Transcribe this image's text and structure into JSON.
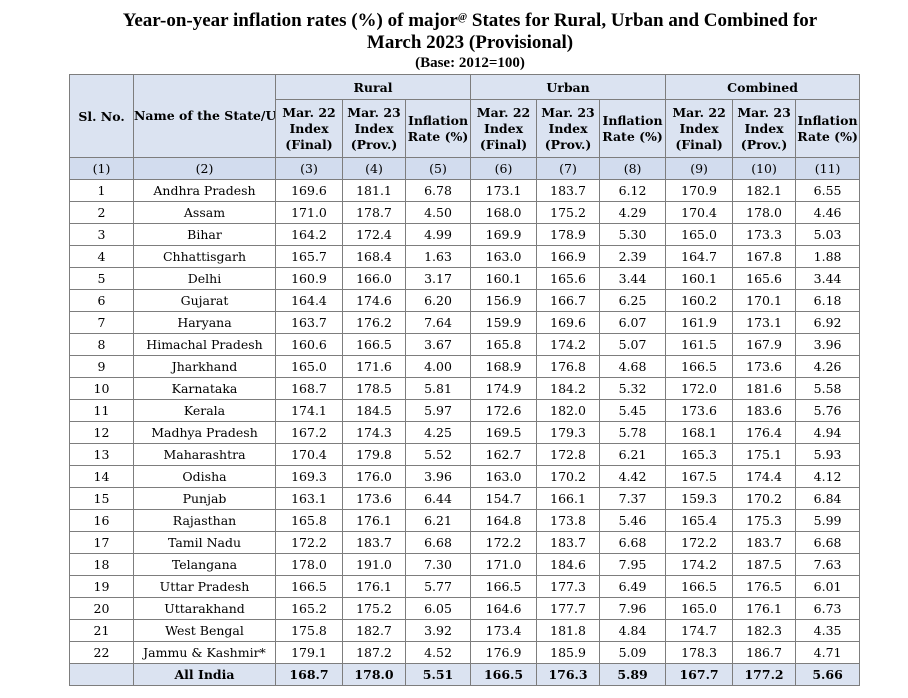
{
  "title": {
    "line1_before": "Year-on-year inflation rates (%) of major",
    "line1_mark": "@",
    "line1_after": " States for Rural, Urban and Combined for",
    "line2": "March 2023 (Provisional)",
    "base": "(Base: 2012=100)"
  },
  "headers": {
    "sl_no": "Sl. No.",
    "name": "Name of the State/UT",
    "groups": [
      "Rural",
      "Urban",
      "Combined"
    ],
    "sub_columns": [
      "Mar. 22 Index (Final)",
      "Mar. 23 Index (Prov.)",
      "Inflation Rate (%)"
    ],
    "column_numbers": [
      "(1)",
      "(2)",
      "(3)",
      "(4)",
      "(5)",
      "(6)",
      "(7)",
      "(8)",
      "(9)",
      "(10)",
      "(11)"
    ]
  },
  "rows": [
    {
      "sl": "1",
      "state": "Andhra Pradesh",
      "v": [
        "169.6",
        "181.1",
        "6.78",
        "173.1",
        "183.7",
        "6.12",
        "170.9",
        "182.1",
        "6.55"
      ]
    },
    {
      "sl": "2",
      "state": "Assam",
      "v": [
        "171.0",
        "178.7",
        "4.50",
        "168.0",
        "175.2",
        "4.29",
        "170.4",
        "178.0",
        "4.46"
      ]
    },
    {
      "sl": "3",
      "state": "Bihar",
      "v": [
        "164.2",
        "172.4",
        "4.99",
        "169.9",
        "178.9",
        "5.30",
        "165.0",
        "173.3",
        "5.03"
      ]
    },
    {
      "sl": "4",
      "state": "Chhattisgarh",
      "v": [
        "165.7",
        "168.4",
        "1.63",
        "163.0",
        "166.9",
        "2.39",
        "164.7",
        "167.8",
        "1.88"
      ]
    },
    {
      "sl": "5",
      "state": "Delhi",
      "v": [
        "160.9",
        "166.0",
        "3.17",
        "160.1",
        "165.6",
        "3.44",
        "160.1",
        "165.6",
        "3.44"
      ]
    },
    {
      "sl": "6",
      "state": "Gujarat",
      "v": [
        "164.4",
        "174.6",
        "6.20",
        "156.9",
        "166.7",
        "6.25",
        "160.2",
        "170.1",
        "6.18"
      ]
    },
    {
      "sl": "7",
      "state": "Haryana",
      "v": [
        "163.7",
        "176.2",
        "7.64",
        "159.9",
        "169.6",
        "6.07",
        "161.9",
        "173.1",
        "6.92"
      ]
    },
    {
      "sl": "8",
      "state": "Himachal Pradesh",
      "v": [
        "160.6",
        "166.5",
        "3.67",
        "165.8",
        "174.2",
        "5.07",
        "161.5",
        "167.9",
        "3.96"
      ]
    },
    {
      "sl": "9",
      "state": "Jharkhand",
      "v": [
        "165.0",
        "171.6",
        "4.00",
        "168.9",
        "176.8",
        "4.68",
        "166.5",
        "173.6",
        "4.26"
      ]
    },
    {
      "sl": "10",
      "state": "Karnataka",
      "v": [
        "168.7",
        "178.5",
        "5.81",
        "174.9",
        "184.2",
        "5.32",
        "172.0",
        "181.6",
        "5.58"
      ]
    },
    {
      "sl": "11",
      "state": "Kerala",
      "v": [
        "174.1",
        "184.5",
        "5.97",
        "172.6",
        "182.0",
        "5.45",
        "173.6",
        "183.6",
        "5.76"
      ]
    },
    {
      "sl": "12",
      "state": "Madhya Pradesh",
      "v": [
        "167.2",
        "174.3",
        "4.25",
        "169.5",
        "179.3",
        "5.78",
        "168.1",
        "176.4",
        "4.94"
      ]
    },
    {
      "sl": "13",
      "state": "Maharashtra",
      "v": [
        "170.4",
        "179.8",
        "5.52",
        "162.7",
        "172.8",
        "6.21",
        "165.3",
        "175.1",
        "5.93"
      ]
    },
    {
      "sl": "14",
      "state": "Odisha",
      "v": [
        "169.3",
        "176.0",
        "3.96",
        "163.0",
        "170.2",
        "4.42",
        "167.5",
        "174.4",
        "4.12"
      ]
    },
    {
      "sl": "15",
      "state": "Punjab",
      "v": [
        "163.1",
        "173.6",
        "6.44",
        "154.7",
        "166.1",
        "7.37",
        "159.3",
        "170.2",
        "6.84"
      ]
    },
    {
      "sl": "16",
      "state": "Rajasthan",
      "v": [
        "165.8",
        "176.1",
        "6.21",
        "164.8",
        "173.8",
        "5.46",
        "165.4",
        "175.3",
        "5.99"
      ]
    },
    {
      "sl": "17",
      "state": "Tamil Nadu",
      "v": [
        "172.2",
        "183.7",
        "6.68",
        "172.2",
        "183.7",
        "6.68",
        "172.2",
        "183.7",
        "6.68"
      ]
    },
    {
      "sl": "18",
      "state": "Telangana",
      "v": [
        "178.0",
        "191.0",
        "7.30",
        "171.0",
        "184.6",
        "7.95",
        "174.2",
        "187.5",
        "7.63"
      ]
    },
    {
      "sl": "19",
      "state": "Uttar Pradesh",
      "v": [
        "166.5",
        "176.1",
        "5.77",
        "166.5",
        "177.3",
        "6.49",
        "166.5",
        "176.5",
        "6.01"
      ]
    },
    {
      "sl": "20",
      "state": "Uttarakhand",
      "v": [
        "165.2",
        "175.2",
        "6.05",
        "164.6",
        "177.7",
        "7.96",
        "165.0",
        "176.1",
        "6.73"
      ]
    },
    {
      "sl": "21",
      "state": "West Bengal",
      "v": [
        "175.8",
        "182.7",
        "3.92",
        "173.4",
        "181.8",
        "4.84",
        "174.7",
        "182.3",
        "4.35"
      ]
    },
    {
      "sl": "22",
      "state": "Jammu & Kashmir*",
      "v": [
        "179.1",
        "187.2",
        "4.52",
        "176.9",
        "185.9",
        "5.09",
        "178.3",
        "186.7",
        "4.71"
      ]
    }
  ],
  "total": {
    "state": "All India",
    "v": [
      "168.7",
      "178.0",
      "5.51",
      "166.5",
      "176.3",
      "5.89",
      "167.7",
      "177.2",
      "5.66"
    ]
  }
}
